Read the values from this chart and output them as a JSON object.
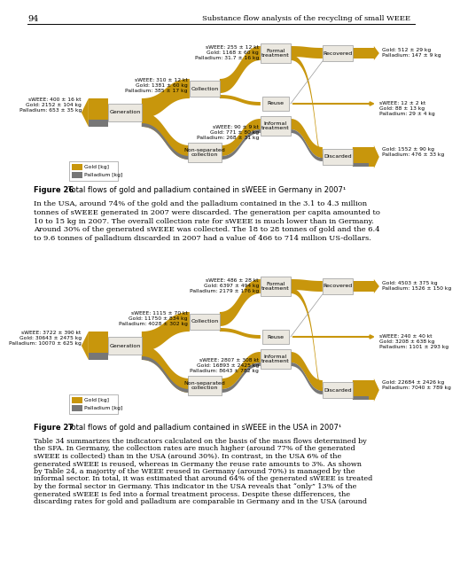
{
  "page_num": "94",
  "header_title": "Substance flow analysis of the recycling of small WEEE",
  "bg_color": "#ffffff",
  "gold_color": "#C8960C",
  "dark_color": "#777777",
  "box_bg": "#ebe8e0",
  "box_edge": "#999999",
  "diagram1": {
    "nodes": {
      "generation": "Generation",
      "collection": "Collection",
      "non_sep": "Non-separated\ncollection",
      "formal": "Formal\ntreatment",
      "reuse": "Reuse",
      "informal": "Informal\ntreatment",
      "recovered": "Recovered",
      "discarded": "Discarded"
    },
    "labels_left": {
      "gen": "sWEEE: 400 ± 16 kt\nGold: 2152 ± 104 kg\nPalladium: 653 ± 35 kg",
      "col": "sWEEE: 310 ± 12 kt\nGold: 1381 ± 60 kg\nPalladium: 385 ± 17 kg",
      "formal": "sWEEE: 255 ± 12 kt\nGold: 1168 ± 60 kg\nPalladium: 31.7 ± 16 kg",
      "informal": "sWEEE: 90 ± 9 kt\nGold: 771 ± 80 kg\nPalladium: 268 ± 31 kg"
    },
    "labels_right": {
      "recovered": "Gold: 512 ± 29 kg\nPalladium: 147 ± 9 kg",
      "reuse": "sWEEE: 12 ± 2 kt\nGold: 88 ± 13 kg\nPalladium: 29 ± 4 kg",
      "discarded": "Gold: 1552 ± 90 kg\nPalladium: 476 ± 33 kg"
    },
    "legend_gold": "Gold [kg]",
    "legend_pal": "Palladium [kg]",
    "caption_bold": "Figure 26",
    "caption_rest": "   Total flows of gold and palladium contained in sWEEE in Germany in 2007¹"
  },
  "body_text1": "In the USA, around 74% of the gold and the palladium contained in the 3.1 to 4.3 million\ntonnes of sWEEE generated in 2007 were discarded. The generation per capita amounted to\n10 to 15 kg in 2007. The overall collection rate for sWEEE is much lower than in Germany.\nAround 30% of the generated sWEEE was collected. The 18 to 28 tonnes of gold and the 6.4\nto 9.6 tonnes of palladium discarded in 2007 had a value of 466 to 714 million US-dollars.",
  "diagram2": {
    "nodes": {
      "generation": "Generation",
      "collection": "Collection",
      "non_sep": "Non-separated\ncollection",
      "formal": "Formal\ntreatment",
      "reuse": "Reuse",
      "informal": "Informal\ntreatment",
      "recovered": "Recovered",
      "discarded": "Discarded"
    },
    "labels_left": {
      "gen": "sWEEE: 3722 ± 390 kt\nGold: 30643 ± 2475 kg\nPalladium: 10070 ± 625 kg",
      "col": "sWEEE: 1115 ± 70 kt\nGold: 11750 ± 834 kg\nPalladium: 4028 ± 302 kg",
      "formal": "sWEEE: 486 ± 28 kt\nGold: 6397 ± 494 kg\nPalladium: 2179 ± 176 kg",
      "informal": "sWEEE: 2807 ± 308 kt\nGold: 16893 ± 2425 kg\nPalladium: 8643 ± 782 kg"
    },
    "labels_right": {
      "recovered": "Gold: 4503 ± 375 kg\nPalladium: 1526 ± 150 kg",
      "reuse": "sWEEE: 240 ± 40 kt\nGold: 3208 ± 638 kg\nPalladium: 1101 ± 293 kg",
      "discarded": "Gold: 22684 ± 2426 kg\nPalladium: 7040 ± 789 kg"
    },
    "legend_gold": "Gold [kg]",
    "legend_pal": "Palladium [kg]",
    "caption_bold": "Figure 27",
    "caption_rest": "   Total flows of gold and palladium contained in sWEEE in the USA in 2007¹"
  },
  "body_text2": "Table 34 summarizes the indicators calculated on the basis of the mass flows determined by\nthe SFA. In Germany, the collection rates are much higher (around 77% of the generated\nsWEEE is collected) than in the USA (around 30%). In contrast, in the USA 6% of the\ngenerated sWEEE is reused, whereas in Germany the reuse rate amounts to 3%. As shown\nby Table 24, a majority of the WEEE reused in Germany (around 70%) is managed by the\ninformal sector. In total, it was estimated that around 64% of the generated sWEEE is treated\nby the formal sector in Germany. This indicator in the USA reveals that “only” 13% of the\ngenerated sWEEE is fed into a formal treatment process. Despite these differences, the\ndiscarding rates for gold and palladium are comparable in Germany and in the USA (around"
}
